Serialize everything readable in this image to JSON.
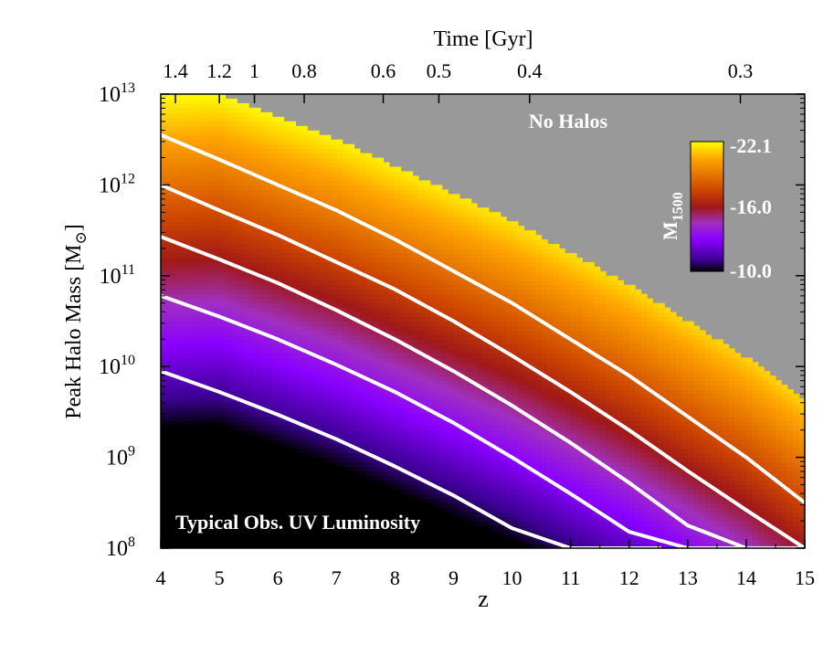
{
  "chart_data": {
    "type": "heatmap",
    "title": "",
    "xlabel": "z",
    "x2label": "Time [Gyr]",
    "ylabel_main": "Peak Halo Mass [M",
    "ylabel_sub": "⊙",
    "ylabel_close": "]",
    "xlim": [
      4,
      15
    ],
    "ylim_log10": [
      8,
      13
    ],
    "y_scale": "log",
    "x_ticks": [
      "4",
      "5",
      "6",
      "7",
      "8",
      "9",
      "10",
      "11",
      "12",
      "13",
      "14",
      "15"
    ],
    "y_ticks": [
      {
        "exp": "8",
        "value": 8
      },
      {
        "exp": "9",
        "value": 9
      },
      {
        "exp": "10",
        "value": 10
      },
      {
        "exp": "11",
        "value": 11
      },
      {
        "exp": "12",
        "value": 12
      },
      {
        "exp": "13",
        "value": 13
      }
    ],
    "top_ticks": [
      {
        "label": "1.4",
        "z": 4.25
      },
      {
        "label": "1.2",
        "z": 5.0
      },
      {
        "label": "1",
        "z": 5.6
      },
      {
        "label": "0.8",
        "z": 6.45
      },
      {
        "label": "0.6",
        "z": 7.8
      },
      {
        "label": "0.5",
        "z": 8.75
      },
      {
        "label": "0.4",
        "z": 10.3
      },
      {
        "label": "0.3",
        "z": 13.9
      }
    ],
    "colorbar": {
      "label_main": "M",
      "label_sub": "1500",
      "tick_labels": [
        "-22.1",
        "-16.0",
        "-10.0"
      ],
      "stops": [
        {
          "value": -22.1,
          "color": "#ffff00"
        },
        {
          "value": -20.5,
          "color": "#ffa500"
        },
        {
          "value": -17.5,
          "color": "#cc4400"
        },
        {
          "value": -16.0,
          "color": "#a01818"
        },
        {
          "value": -14.5,
          "color": "#a030c0"
        },
        {
          "value": -13.0,
          "color": "#8a00ff"
        },
        {
          "value": -11.0,
          "color": "#3a0090"
        },
        {
          "value": -10.0,
          "color": "#000000"
        }
      ]
    },
    "boundary_log10_mass": {
      "z": [
        4,
        5,
        6,
        7,
        8,
        9,
        10,
        11,
        12,
        13,
        14,
        15
      ],
      "log10_m": [
        13.0,
        13.0,
        12.75,
        12.5,
        12.2,
        11.9,
        11.6,
        11.25,
        10.9,
        10.5,
        10.1,
        9.6
      ]
    },
    "series": [
      {
        "z": [
          4,
          5,
          6,
          7,
          8,
          9,
          10,
          11,
          12,
          13,
          14,
          15
        ],
        "log10_m": [
          12.55,
          12.28,
          12.0,
          11.72,
          11.4,
          11.05,
          10.7,
          10.3,
          9.9,
          9.45,
          9.0,
          8.5
        ]
      },
      {
        "z": [
          4,
          5,
          6,
          7,
          8,
          9,
          10,
          11,
          12,
          13,
          14,
          15
        ],
        "log10_m": [
          12.0,
          11.72,
          11.45,
          11.15,
          10.85,
          10.5,
          10.12,
          9.72,
          9.3,
          8.85,
          8.42,
          8.0
        ]
      },
      {
        "z": [
          4,
          5,
          6,
          7,
          8,
          9,
          10,
          11,
          12,
          13,
          14,
          14.95
        ],
        "log10_m": [
          11.43,
          11.18,
          10.92,
          10.62,
          10.3,
          9.95,
          9.57,
          9.16,
          8.72,
          8.25,
          8.0,
          8.0
        ]
      },
      {
        "z": [
          4,
          5,
          6,
          7,
          8,
          9,
          10,
          11,
          12,
          13,
          14.3
        ],
        "log10_m": [
          10.78,
          10.55,
          10.3,
          10.02,
          9.72,
          9.38,
          9.0,
          8.6,
          8.18,
          8.0,
          8.0
        ]
      },
      {
        "z": [
          4,
          5,
          6,
          7,
          8,
          9,
          10,
          11,
          12,
          12.55
        ],
        "log10_m": [
          9.95,
          9.72,
          9.47,
          9.2,
          8.9,
          8.58,
          8.22,
          8.0,
          8.0,
          8.0
        ]
      }
    ],
    "annotations": {
      "no_halos": "No Halos",
      "typical": "Typical Obs. UV Luminosity"
    },
    "colors": {
      "no_halos": "#999999",
      "curve": "#ffffff",
      "frame": "#000000"
    }
  }
}
